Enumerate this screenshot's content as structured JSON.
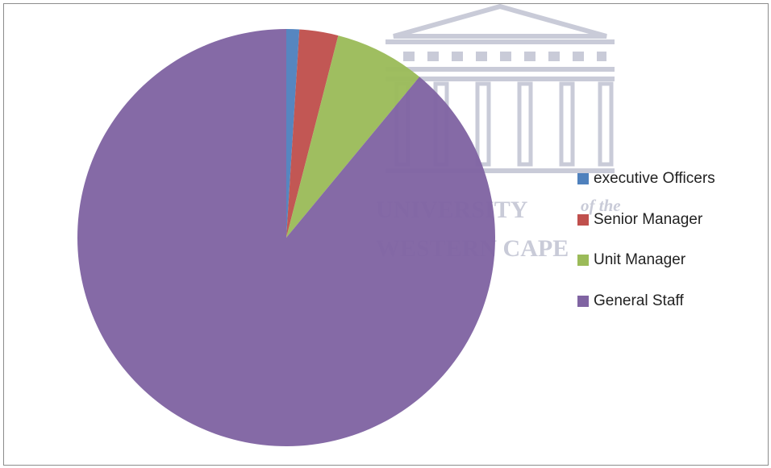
{
  "chart_data": {
    "type": "pie",
    "categories": [
      "executive Officers",
      "Senior Manager",
      "Unit Manager",
      "General Staff"
    ],
    "values": [
      1,
      3,
      7,
      89
    ],
    "colors": [
      "#4f81bd",
      "#c0504d",
      "#9bbb59",
      "#8064a2"
    ],
    "legend_position": "right",
    "start_angle": "12 o'clock, clockwise"
  },
  "watermark": {
    "line1": "UNIVERSITY",
    "line1_suffix": "of the",
    "line2": "WESTERN CAPE",
    "icon": "university-building-icon"
  }
}
